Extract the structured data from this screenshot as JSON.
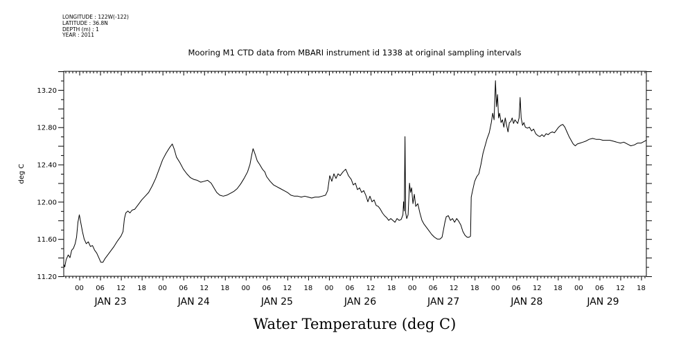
{
  "meta_lines": [
    "LONGITUDE : 122W(-122)",
    "LATITUDE : 36.8N",
    "DEPTH (m) : 1",
    "YEAR : 2011"
  ],
  "chart_data": {
    "type": "line",
    "title": "Mooring M1 CTD data from MBARI instrument id 1338 at original sampling intervals",
    "ylabel": "deg C",
    "xlabel": "Water Temperature (deg C)",
    "ylim": [
      11.2,
      13.4
    ],
    "yticks": [
      11.2,
      11.6,
      12.0,
      12.4,
      12.8,
      13.2
    ],
    "ytick_labels": [
      "11.20",
      "11.60",
      "12.00",
      "12.40",
      "12.80",
      "13.20"
    ],
    "xlim_hours": [
      -4.5,
      163.5
    ],
    "x_hour_labels": [
      {
        "hour": 0,
        "label": "00"
      },
      {
        "hour": 6,
        "label": "06"
      },
      {
        "hour": 12,
        "label": "12"
      },
      {
        "hour": 18,
        "label": "18"
      },
      {
        "hour": 24,
        "label": "00"
      },
      {
        "hour": 30,
        "label": "06"
      },
      {
        "hour": 36,
        "label": "12"
      },
      {
        "hour": 42,
        "label": "18"
      },
      {
        "hour": 48,
        "label": "00"
      },
      {
        "hour": 54,
        "label": "06"
      },
      {
        "hour": 60,
        "label": "12"
      },
      {
        "hour": 66,
        "label": "18"
      },
      {
        "hour": 72,
        "label": "00"
      },
      {
        "hour": 78,
        "label": "06"
      },
      {
        "hour": 84,
        "label": "12"
      },
      {
        "hour": 90,
        "label": "18"
      },
      {
        "hour": 96,
        "label": "00"
      },
      {
        "hour": 102,
        "label": "06"
      },
      {
        "hour": 108,
        "label": "12"
      },
      {
        "hour": 114,
        "label": "18"
      },
      {
        "hour": 120,
        "label": "00"
      },
      {
        "hour": 126,
        "label": "06"
      },
      {
        "hour": 132,
        "label": "12"
      },
      {
        "hour": 138,
        "label": "18"
      },
      {
        "hour": 144,
        "label": "00"
      },
      {
        "hour": 150,
        "label": "06"
      },
      {
        "hour": 156,
        "label": "12"
      },
      {
        "hour": 162,
        "label": "18"
      }
    ],
    "day_labels": [
      {
        "hour": 9,
        "label": "JAN 23"
      },
      {
        "hour": 33,
        "label": "JAN 24"
      },
      {
        "hour": 57,
        "label": "JAN 25"
      },
      {
        "hour": 81,
        "label": "JAN 26"
      },
      {
        "hour": 105,
        "label": "JAN 27"
      },
      {
        "hour": 129,
        "label": "JAN 28"
      },
      {
        "hour": 151,
        "label": "JAN 29"
      }
    ],
    "series": [
      {
        "color": "#000000",
        "points": [
          [
            -4.5,
            11.33
          ],
          [
            -4.2,
            11.3
          ],
          [
            -3.8,
            11.38
          ],
          [
            -3.2,
            11.43
          ],
          [
            -2.7,
            11.4
          ],
          [
            -2.2,
            11.48
          ],
          [
            -1.7,
            11.5
          ],
          [
            -1.2,
            11.55
          ],
          [
            -0.8,
            11.62
          ],
          [
            -0.4,
            11.78
          ],
          [
            0.0,
            11.86
          ],
          [
            0.4,
            11.78
          ],
          [
            0.9,
            11.68
          ],
          [
            1.4,
            11.6
          ],
          [
            2.0,
            11.55
          ],
          [
            2.6,
            11.57
          ],
          [
            3.2,
            11.52
          ],
          [
            3.8,
            11.53
          ],
          [
            4.4,
            11.48
          ],
          [
            5.0,
            11.45
          ],
          [
            5.6,
            11.4
          ],
          [
            6.2,
            11.35
          ],
          [
            6.8,
            11.35
          ],
          [
            7.4,
            11.39
          ],
          [
            8.2,
            11.43
          ],
          [
            9.0,
            11.47
          ],
          [
            10.0,
            11.52
          ],
          [
            11.0,
            11.58
          ],
          [
            12.0,
            11.63
          ],
          [
            12.6,
            11.68
          ],
          [
            13.0,
            11.82
          ],
          [
            13.4,
            11.88
          ],
          [
            14.0,
            11.9
          ],
          [
            14.6,
            11.88
          ],
          [
            15.2,
            11.91
          ],
          [
            16.0,
            11.92
          ],
          [
            17.0,
            11.97
          ],
          [
            18.0,
            12.02
          ],
          [
            19.0,
            12.06
          ],
          [
            20.0,
            12.1
          ],
          [
            21.0,
            12.17
          ],
          [
            22.0,
            12.25
          ],
          [
            23.0,
            12.35
          ],
          [
            24.0,
            12.45
          ],
          [
            25.0,
            12.52
          ],
          [
            26.0,
            12.58
          ],
          [
            26.8,
            12.62
          ],
          [
            27.4,
            12.56
          ],
          [
            28.0,
            12.48
          ],
          [
            29.0,
            12.42
          ],
          [
            30.0,
            12.35
          ],
          [
            31.0,
            12.3
          ],
          [
            32.0,
            12.26
          ],
          [
            33.0,
            12.24
          ],
          [
            34.0,
            12.23
          ],
          [
            35.0,
            12.21
          ],
          [
            36.0,
            12.22
          ],
          [
            37.0,
            12.23
          ],
          [
            38.0,
            12.2
          ],
          [
            38.8,
            12.15
          ],
          [
            39.6,
            12.1
          ],
          [
            40.5,
            12.07
          ],
          [
            41.5,
            12.06
          ],
          [
            42.5,
            12.07
          ],
          [
            43.5,
            12.09
          ],
          [
            44.5,
            12.11
          ],
          [
            45.5,
            12.14
          ],
          [
            46.5,
            12.19
          ],
          [
            47.5,
            12.25
          ],
          [
            48.5,
            12.32
          ],
          [
            49.2,
            12.4
          ],
          [
            49.7,
            12.5
          ],
          [
            50.1,
            12.57
          ],
          [
            50.6,
            12.52
          ],
          [
            51.3,
            12.44
          ],
          [
            52.0,
            12.4
          ],
          [
            52.8,
            12.35
          ],
          [
            53.5,
            12.32
          ],
          [
            54.0,
            12.27
          ],
          [
            55.0,
            12.22
          ],
          [
            56.0,
            12.18
          ],
          [
            57.0,
            12.16
          ],
          [
            58.0,
            12.14
          ],
          [
            59.0,
            12.12
          ],
          [
            60.0,
            12.1
          ],
          [
            61.0,
            12.07
          ],
          [
            62.0,
            12.06
          ],
          [
            63.0,
            12.06
          ],
          [
            64.0,
            12.05
          ],
          [
            65.0,
            12.06
          ],
          [
            66.0,
            12.05
          ],
          [
            67.0,
            12.04
          ],
          [
            68.0,
            12.05
          ],
          [
            69.0,
            12.05
          ],
          [
            70.0,
            12.06
          ],
          [
            71.0,
            12.07
          ],
          [
            71.6,
            12.12
          ],
          [
            72.2,
            12.28
          ],
          [
            72.8,
            12.22
          ],
          [
            73.4,
            12.3
          ],
          [
            74.0,
            12.25
          ],
          [
            74.6,
            12.3
          ],
          [
            75.2,
            12.28
          ],
          [
            76.0,
            12.32
          ],
          [
            76.8,
            12.35
          ],
          [
            77.6,
            12.28
          ],
          [
            78.4,
            12.24
          ],
          [
            79.0,
            12.18
          ],
          [
            79.6,
            12.2
          ],
          [
            80.2,
            12.13
          ],
          [
            80.8,
            12.15
          ],
          [
            81.4,
            12.1
          ],
          [
            82.0,
            12.12
          ],
          [
            82.6,
            12.07
          ],
          [
            83.2,
            12.0
          ],
          [
            83.8,
            12.06
          ],
          [
            84.4,
            12.0
          ],
          [
            85.0,
            12.02
          ],
          [
            85.6,
            11.96
          ],
          [
            86.2,
            11.95
          ],
          [
            86.8,
            11.92
          ],
          [
            87.4,
            11.88
          ],
          [
            88.0,
            11.85
          ],
          [
            88.6,
            11.83
          ],
          [
            89.2,
            11.8
          ],
          [
            89.8,
            11.82
          ],
          [
            90.4,
            11.8
          ],
          [
            91.0,
            11.78
          ],
          [
            91.6,
            11.82
          ],
          [
            92.2,
            11.8
          ],
          [
            92.8,
            11.81
          ],
          [
            93.3,
            11.86
          ],
          [
            93.5,
            12.0
          ],
          [
            93.7,
            11.9
          ],
          [
            93.9,
            12.7
          ],
          [
            94.1,
            11.88
          ],
          [
            94.4,
            11.82
          ],
          [
            94.8,
            11.86
          ],
          [
            95.2,
            12.2
          ],
          [
            95.5,
            12.1
          ],
          [
            95.8,
            12.15
          ],
          [
            96.2,
            11.98
          ],
          [
            96.6,
            12.08
          ],
          [
            97.0,
            11.95
          ],
          [
            97.6,
            11.98
          ],
          [
            98.2,
            11.88
          ],
          [
            98.8,
            11.8
          ],
          [
            99.4,
            11.76
          ],
          [
            100.0,
            11.73
          ],
          [
            100.8,
            11.69
          ],
          [
            101.6,
            11.65
          ],
          [
            102.4,
            11.62
          ],
          [
            103.2,
            11.6
          ],
          [
            104.0,
            11.6
          ],
          [
            104.6,
            11.62
          ],
          [
            105.0,
            11.7
          ],
          [
            105.4,
            11.78
          ],
          [
            105.8,
            11.84
          ],
          [
            106.4,
            11.85
          ],
          [
            107.0,
            11.8
          ],
          [
            107.6,
            11.82
          ],
          [
            108.2,
            11.78
          ],
          [
            108.8,
            11.82
          ],
          [
            109.4,
            11.79
          ],
          [
            110.0,
            11.75
          ],
          [
            110.6,
            11.68
          ],
          [
            111.2,
            11.64
          ],
          [
            111.8,
            11.62
          ],
          [
            112.4,
            11.62
          ],
          [
            112.8,
            11.63
          ],
          [
            113.0,
            12.05
          ],
          [
            113.4,
            12.12
          ],
          [
            114.0,
            12.22
          ],
          [
            114.6,
            12.27
          ],
          [
            115.2,
            12.3
          ],
          [
            115.8,
            12.4
          ],
          [
            116.4,
            12.52
          ],
          [
            117.0,
            12.6
          ],
          [
            117.6,
            12.68
          ],
          [
            118.2,
            12.74
          ],
          [
            118.8,
            12.85
          ],
          [
            119.2,
            12.95
          ],
          [
            119.6,
            12.88
          ],
          [
            120.0,
            13.3
          ],
          [
            120.3,
            13.02
          ],
          [
            120.6,
            13.15
          ],
          [
            120.9,
            12.9
          ],
          [
            121.2,
            12.95
          ],
          [
            121.6,
            12.85
          ],
          [
            122.0,
            12.88
          ],
          [
            122.4,
            12.8
          ],
          [
            122.8,
            12.9
          ],
          [
            123.2,
            12.82
          ],
          [
            123.6,
            12.75
          ],
          [
            124.0,
            12.85
          ],
          [
            124.4,
            12.86
          ],
          [
            124.8,
            12.9
          ],
          [
            125.2,
            12.84
          ],
          [
            125.6,
            12.88
          ],
          [
            126.0,
            12.86
          ],
          [
            126.4,
            12.84
          ],
          [
            126.8,
            12.9
          ],
          [
            127.1,
            13.12
          ],
          [
            127.4,
            12.9
          ],
          [
            127.8,
            12.82
          ],
          [
            128.2,
            12.85
          ],
          [
            128.6,
            12.8
          ],
          [
            129.2,
            12.79
          ],
          [
            129.8,
            12.8
          ],
          [
            130.4,
            12.76
          ],
          [
            131.0,
            12.78
          ],
          [
            131.6,
            12.73
          ],
          [
            132.2,
            12.71
          ],
          [
            132.8,
            12.7
          ],
          [
            133.4,
            12.72
          ],
          [
            134.0,
            12.7
          ],
          [
            134.6,
            12.73
          ],
          [
            135.2,
            12.72
          ],
          [
            135.8,
            12.74
          ],
          [
            136.4,
            12.75
          ],
          [
            137.0,
            12.74
          ],
          [
            137.6,
            12.77
          ],
          [
            138.2,
            12.8
          ],
          [
            138.8,
            12.82
          ],
          [
            139.4,
            12.83
          ],
          [
            140.0,
            12.8
          ],
          [
            140.6,
            12.75
          ],
          [
            141.2,
            12.7
          ],
          [
            141.8,
            12.66
          ],
          [
            142.4,
            12.62
          ],
          [
            143.0,
            12.6
          ],
          [
            143.6,
            12.62
          ],
          [
            144.4,
            12.63
          ],
          [
            145.2,
            12.64
          ],
          [
            146.0,
            12.65
          ],
          [
            147.0,
            12.67
          ],
          [
            148.0,
            12.68
          ],
          [
            149.0,
            12.67
          ],
          [
            150.0,
            12.67
          ],
          [
            151.0,
            12.66
          ],
          [
            152.0,
            12.66
          ],
          [
            153.0,
            12.66
          ],
          [
            154.0,
            12.65
          ],
          [
            155.0,
            12.64
          ],
          [
            156.0,
            12.63
          ],
          [
            157.0,
            12.64
          ],
          [
            158.0,
            12.62
          ],
          [
            159.0,
            12.6
          ],
          [
            160.0,
            12.61
          ],
          [
            161.0,
            12.63
          ],
          [
            162.0,
            12.63
          ],
          [
            163.0,
            12.65
          ],
          [
            163.5,
            12.66
          ]
        ]
      }
    ]
  }
}
